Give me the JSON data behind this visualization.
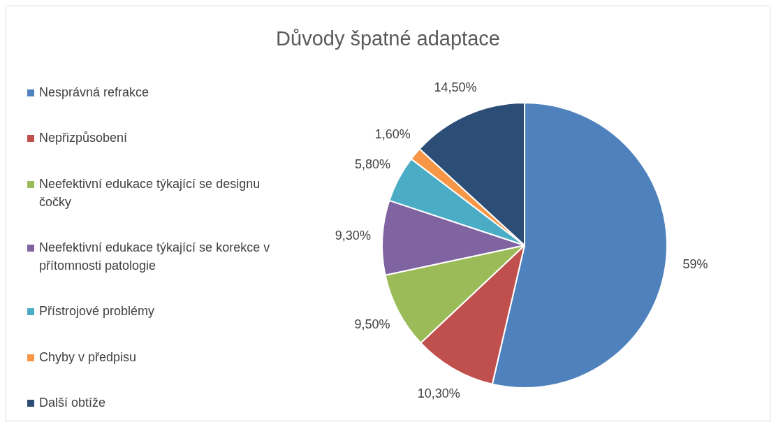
{
  "chart_data": {
    "type": "pie",
    "title": "Důvody špatné adaptace",
    "categories": [
      "Nesprávná refrakce",
      "Nepřizpůsobení",
      "Neefektivní edukace týkající se designu čočky",
      "Neefektivní edukace týkající se korekce v přítomnosti patologie",
      "Přístrojové problémy",
      "Chyby v předpisu",
      "Další obtíže"
    ],
    "values": [
      59,
      10.3,
      9.5,
      9.3,
      5.8,
      1.6,
      14.5
    ],
    "value_labels": [
      "59%",
      "10,30%",
      "9,50%",
      "9,30%",
      "5,80%",
      "1,60%",
      "14,50%"
    ],
    "colors": [
      "#4f81bd",
      "#c0504d",
      "#9bbb59",
      "#8064a2",
      "#4bacc6",
      "#f79646",
      "#2c4d75"
    ],
    "legend": "left"
  }
}
